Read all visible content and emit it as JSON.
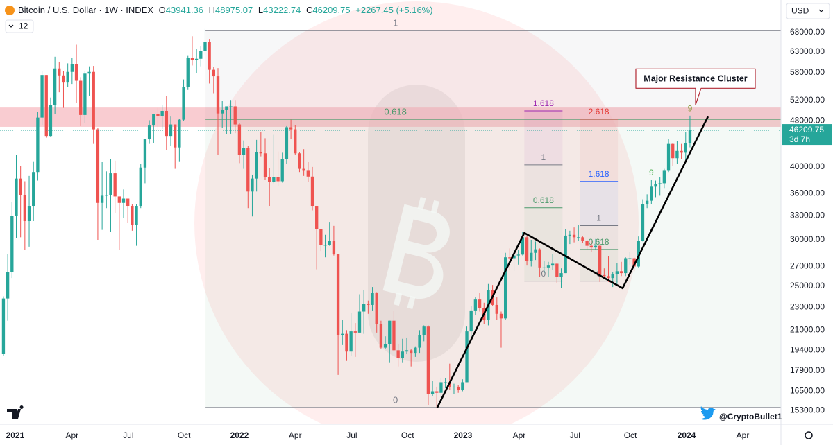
{
  "header": {
    "symbol": "Bitcoin / U.S. Dollar · 1W · INDEX",
    "open": {
      "label": "O",
      "value": "43941.36"
    },
    "high": {
      "label": "H",
      "value": "48975.07"
    },
    "low": {
      "label": "L",
      "value": "43222.74"
    },
    "close": {
      "label": "C",
      "value": "46209.75"
    },
    "change": "+2267.45 (+5.16%)",
    "interval_count": "12"
  },
  "currency": "USD",
  "watermark": "@CryptoBullet1",
  "chart_data": {
    "type": "candlestick",
    "log_scale": true,
    "grid": false,
    "up_color": "#26a69a",
    "down_color": "#ef5350",
    "ohlc": [
      [
        19150,
        24000,
        19000,
        23800
      ],
      [
        23800,
        28400,
        21800,
        26400
      ],
      [
        26400,
        34800,
        25800,
        33000
      ],
      [
        33000,
        42000,
        30200,
        38200
      ],
      [
        38200,
        40100,
        30300,
        35800
      ],
      [
        35800,
        37800,
        28800,
        32300
      ],
      [
        32300,
        38600,
        29200,
        34300
      ],
      [
        34300,
        40900,
        32300,
        39200
      ],
      [
        39200,
        49700,
        37900,
        48600
      ],
      [
        48600,
        58300,
        47100,
        57500
      ],
      [
        57500,
        57500,
        44900,
        45200
      ],
      [
        45200,
        52600,
        45000,
        51000
      ],
      [
        51000,
        61800,
        49300,
        59000
      ],
      [
        59000,
        60600,
        53700,
        57400
      ],
      [
        57400,
        58400,
        50500,
        55800
      ],
      [
        55800,
        60200,
        54900,
        58200
      ],
      [
        58200,
        61500,
        55500,
        60000
      ],
      [
        60000,
        64800,
        51500,
        56200
      ],
      [
        56200,
        57000,
        47000,
        49100
      ],
      [
        49100,
        58500,
        47500,
        57800
      ],
      [
        57800,
        59500,
        53000,
        58200
      ],
      [
        58200,
        59600,
        43800,
        46400
      ],
      [
        46400,
        46600,
        30000,
        34700
      ],
      [
        34700,
        40800,
        31200,
        35700
      ],
      [
        35700,
        39300,
        34000,
        35800
      ],
      [
        35800,
        41300,
        31000,
        39000
      ],
      [
        39000,
        41000,
        33300,
        35600
      ],
      [
        35600,
        35600,
        28800,
        34700
      ],
      [
        34700,
        36600,
        32700,
        35300
      ],
      [
        35300,
        35300,
        32100,
        34300
      ],
      [
        34300,
        34500,
        31100,
        31800
      ],
      [
        31800,
        34500,
        29300,
        34300
      ],
      [
        34300,
        40500,
        34000,
        39900
      ],
      [
        39900,
        44600,
        37500,
        44600
      ],
      [
        44600,
        48100,
        43800,
        47100
      ],
      [
        47100,
        49300,
        43900,
        49300
      ],
      [
        49300,
        50500,
        46300,
        48900
      ],
      [
        48900,
        51000,
        46500,
        49900
      ],
      [
        49900,
        52900,
        42800,
        45200
      ],
      [
        45200,
        48800,
        43400,
        47300
      ],
      [
        47300,
        47300,
        39700,
        43200
      ],
      [
        43200,
        48400,
        40900,
        48200
      ],
      [
        48200,
        56500,
        48000,
        54900
      ],
      [
        54900,
        62000,
        54200,
        61500
      ],
      [
        61500,
        67000,
        59700,
        61000
      ],
      [
        61000,
        63700,
        58000,
        61300
      ],
      [
        61300,
        64400,
        59500,
        63300
      ],
      [
        63300,
        69000,
        62300,
        65500
      ],
      [
        65500,
        66300,
        55600,
        58700
      ],
      [
        58700,
        59400,
        53500,
        57200
      ],
      [
        57200,
        59100,
        42000,
        49400
      ],
      [
        49400,
        51900,
        46700,
        50100
      ],
      [
        50100,
        50500,
        45500,
        50800
      ],
      [
        50800,
        52100,
        45600,
        50800
      ],
      [
        50800,
        52100,
        45700,
        47300
      ],
      [
        47300,
        47500,
        40600,
        41900
      ],
      [
        41900,
        44400,
        39700,
        43100
      ],
      [
        43100,
        43500,
        34000,
        36300
      ],
      [
        36300,
        38800,
        32900,
        38200
      ],
      [
        38200,
        44500,
        36300,
        42400
      ],
      [
        42400,
        45900,
        41700,
        42200
      ],
      [
        42200,
        44800,
        38000,
        38400
      ],
      [
        38400,
        39800,
        34300,
        37700
      ],
      [
        37700,
        45400,
        37500,
        38400
      ],
      [
        38400,
        42500,
        37100,
        37800
      ],
      [
        37800,
        42300,
        37600,
        41300
      ],
      [
        41300,
        47000,
        40500,
        46800
      ],
      [
        46800,
        48200,
        44600,
        46400
      ],
      [
        46400,
        47200,
        41900,
        42200
      ],
      [
        42200,
        42400,
        39200,
        39700
      ],
      [
        39700,
        42900,
        38600,
        39500
      ],
      [
        39500,
        40800,
        37700,
        38500
      ],
      [
        38500,
        40000,
        33700,
        34300
      ],
      [
        34300,
        34300,
        26700,
        31300
      ],
      [
        31300,
        31300,
        28700,
        29400
      ],
      [
        29400,
        30600,
        28000,
        29400
      ],
      [
        29400,
        32200,
        29300,
        29900
      ],
      [
        29900,
        31700,
        28200,
        28400
      ],
      [
        28400,
        28400,
        17600,
        20600
      ],
      [
        20600,
        21900,
        19800,
        20700
      ],
      [
        20700,
        21000,
        18600,
        19300
      ],
      [
        19300,
        22500,
        19000,
        20900
      ],
      [
        20900,
        21600,
        18900,
        20800
      ],
      [
        20800,
        24200,
        20800,
        22600
      ],
      [
        22600,
        24600,
        20700,
        23300
      ],
      [
        23300,
        23600,
        22400,
        23200
      ],
      [
        23200,
        24900,
        22700,
        24300
      ],
      [
        24300,
        24400,
        20800,
        21500
      ],
      [
        21500,
        21800,
        19500,
        19600
      ],
      [
        19600,
        20500,
        19500,
        19900
      ],
      [
        19900,
        21800,
        18500,
        21800
      ],
      [
        21800,
        22700,
        19300,
        19400
      ],
      [
        19400,
        19900,
        18200,
        18800
      ],
      [
        18800,
        20300,
        18500,
        19300
      ],
      [
        19300,
        20400,
        19100,
        19400
      ],
      [
        19400,
        19500,
        18200,
        19200
      ],
      [
        19200,
        19700,
        18900,
        19600
      ],
      [
        19600,
        21000,
        19200,
        20600
      ],
      [
        20600,
        21400,
        20100,
        21300
      ],
      [
        21300,
        21400,
        15600,
        16300
      ],
      [
        16300,
        17200,
        16200,
        16500
      ],
      [
        16500,
        16800,
        15500,
        16400
      ],
      [
        16400,
        17400,
        16100,
        17100
      ],
      [
        17100,
        17400,
        16700,
        17100
      ],
      [
        17100,
        18400,
        16600,
        16800
      ],
      [
        16800,
        17000,
        16300,
        16800
      ],
      [
        16800,
        16900,
        16400,
        16600
      ],
      [
        16600,
        17300,
        16500,
        17100
      ],
      [
        17100,
        21300,
        17100,
        20900
      ],
      [
        20900,
        23100,
        20400,
        22700
      ],
      [
        22700,
        23900,
        22300,
        23700
      ],
      [
        23700,
        24300,
        22600,
        22900
      ],
      [
        22900,
        23400,
        21500,
        21900
      ],
      [
        21900,
        25200,
        21400,
        24600
      ],
      [
        24600,
        25100,
        23100,
        23200
      ],
      [
        23200,
        23900,
        21900,
        22400
      ],
      [
        22400,
        22600,
        19600,
        22000
      ],
      [
        22000,
        28500,
        21900,
        28000
      ],
      [
        28000,
        29000,
        26600,
        27900
      ],
      [
        27900,
        29200,
        26500,
        28200
      ],
      [
        28200,
        28800,
        27200,
        28300
      ],
      [
        28300,
        31000,
        28200,
        30300
      ],
      [
        30300,
        30500,
        27100,
        27600
      ],
      [
        27600,
        30000,
        27000,
        28500
      ],
      [
        28500,
        29800,
        27700,
        28900
      ],
      [
        28900,
        29000,
        25900,
        26900
      ],
      [
        26900,
        27600,
        26300,
        26900
      ],
      [
        26900,
        27500,
        25900,
        27100
      ],
      [
        27100,
        28400,
        26600,
        27300
      ],
      [
        27300,
        27400,
        25300,
        25900
      ],
      [
        25900,
        26800,
        24800,
        26300
      ],
      [
        26300,
        31300,
        26300,
        30500
      ],
      [
        30500,
        31100,
        29500,
        30600
      ],
      [
        30600,
        31500,
        29700,
        30300
      ],
      [
        30300,
        31800,
        29900,
        30300
      ],
      [
        30300,
        30400,
        29600,
        29900
      ],
      [
        29900,
        30000,
        28900,
        29300
      ],
      [
        29300,
        29900,
        28600,
        29100
      ],
      [
        29100,
        30100,
        28800,
        29300
      ],
      [
        29300,
        29500,
        25400,
        26100
      ],
      [
        26100,
        26800,
        25800,
        26000
      ],
      [
        26000,
        28100,
        25400,
        25800
      ],
      [
        25800,
        26400,
        24900,
        26200
      ],
      [
        26200,
        27400,
        25200,
        26500
      ],
      [
        26500,
        27500,
        26000,
        26300
      ],
      [
        26300,
        28000,
        26000,
        27900
      ],
      [
        27900,
        28600,
        27200,
        27900
      ],
      [
        27900,
        28000,
        26500,
        27000
      ],
      [
        27000,
        30400,
        26900,
        29900
      ],
      [
        29900,
        35200,
        29800,
        34500
      ],
      [
        34500,
        35900,
        34000,
        35000
      ],
      [
        35000,
        38000,
        34500,
        37000
      ],
      [
        37000,
        37900,
        35500,
        37400
      ],
      [
        37400,
        38400,
        35700,
        37500
      ],
      [
        37500,
        39700,
        36800,
        39500
      ],
      [
        39500,
        44700,
        39200,
        43800
      ],
      [
        43800,
        44000,
        40200,
        41400
      ],
      [
        41400,
        44300,
        40500,
        42600
      ],
      [
        42600,
        43800,
        41300,
        42300
      ],
      [
        42300,
        45900,
        40800,
        43900
      ],
      [
        43941.36,
        48975.07,
        43222.74,
        46209.75
      ]
    ],
    "xlim": [
      -0.8,
      181.2
    ],
    "xticks": [
      {
        "value": 2.75,
        "label": "2021"
      },
      {
        "value": 16.0,
        "label": "Apr"
      },
      {
        "value": 29.1,
        "label": "Jul"
      },
      {
        "value": 42.1,
        "label": "Oct"
      },
      {
        "value": 55.0,
        "label": "2022"
      },
      {
        "value": 68.0,
        "label": "Apr"
      },
      {
        "value": 81.2,
        "label": "Jul"
      },
      {
        "value": 94.2,
        "label": "Oct"
      },
      {
        "value": 107.1,
        "label": "2023"
      },
      {
        "value": 120.2,
        "label": "Apr"
      },
      {
        "value": 133.2,
        "label": "Jul"
      },
      {
        "value": 146.1,
        "label": "Oct"
      },
      {
        "value": 159.2,
        "label": "2024"
      },
      {
        "value": 172.3,
        "label": "Apr"
      }
    ],
    "ylim": [
      14490,
      77300
    ],
    "yticks": [
      {
        "value": 15300,
        "label": "15300.00"
      },
      {
        "value": 16500,
        "label": "16500.00"
      },
      {
        "value": 17900,
        "label": "17900.00"
      },
      {
        "value": 19400,
        "label": "19400.00"
      },
      {
        "value": 21000,
        "label": "21000.00"
      },
      {
        "value": 23000,
        "label": "23000.00"
      },
      {
        "value": 25000,
        "label": "25000.00"
      },
      {
        "value": 27000,
        "label": "27000.00"
      },
      {
        "value": 30000,
        "label": "30000.00"
      },
      {
        "value": 33000,
        "label": "33000.00"
      },
      {
        "value": 36000,
        "label": "36000.00"
      },
      {
        "value": 40000,
        "label": "40000.00"
      },
      {
        "value": 48000,
        "label": "48000.00"
      },
      {
        "value": 52000,
        "label": "52000.00"
      },
      {
        "value": 58000,
        "label": "58000.00"
      },
      {
        "value": 63000,
        "label": "63000.00"
      },
      {
        "value": 68000,
        "label": "68000.00"
      }
    ],
    "last_price": {
      "value": 46209.75,
      "label": "46209.75",
      "countdown": "3d 7h",
      "color": "#26a69a"
    },
    "zones": [
      {
        "low": 46860,
        "high": 50570,
        "color": "#f6b7bd"
      }
    ],
    "fibs": [
      {
        "start": 47.1,
        "end": 181.2,
        "levels": [
          {
            "label": "1",
            "price": 68540,
            "color": "#787b86"
          },
          {
            "label": "0.618",
            "price": 48300,
            "color": "#4c9a6c"
          },
          {
            "label": "0",
            "price": 15470,
            "color": "#787b86"
          }
        ]
      },
      {
        "start": 121.4,
        "end": 130.3,
        "levels": [
          {
            "label": "1.618",
            "price": 49900,
            "color": "#9c27b0"
          },
          {
            "label": "1",
            "price": 40330,
            "color": "#787b86"
          },
          {
            "label": "0.618",
            "price": 34050,
            "color": "#4c9a6c"
          },
          {
            "label": "0",
            "price": 25480,
            "color": "#787b86"
          }
        ]
      },
      {
        "start": 134.3,
        "end": 143.2,
        "levels": [
          {
            "label": "2.618",
            "price": 48300,
            "color": "#e53935"
          },
          {
            "label": "1.618",
            "price": 37780,
            "color": "#2962ff"
          },
          {
            "label": "1",
            "price": 31730,
            "color": "#787b86"
          },
          {
            "label": "0.618",
            "price": 28880,
            "color": "#4c9a6c"
          },
          {
            "label": "0",
            "price": 25480,
            "color": "#787b86"
          }
        ]
      }
    ],
    "trendline": [
      [
        101.1,
        15470
      ],
      [
        121.4,
        30830
      ],
      [
        144.3,
        24780
      ],
      [
        164.2,
        48800
      ]
    ],
    "annotations": [
      {
        "text": "Major Resistance Cluster",
        "x": 161.3,
        "price": 51100,
        "color": "#b22833"
      }
    ],
    "td_labels": [
      {
        "text": "9",
        "x": 151,
        "price": 39030,
        "color": "#4caf50"
      },
      {
        "text": "9",
        "x": 160,
        "price": 50290,
        "color": "#8a9a3a"
      }
    ]
  }
}
